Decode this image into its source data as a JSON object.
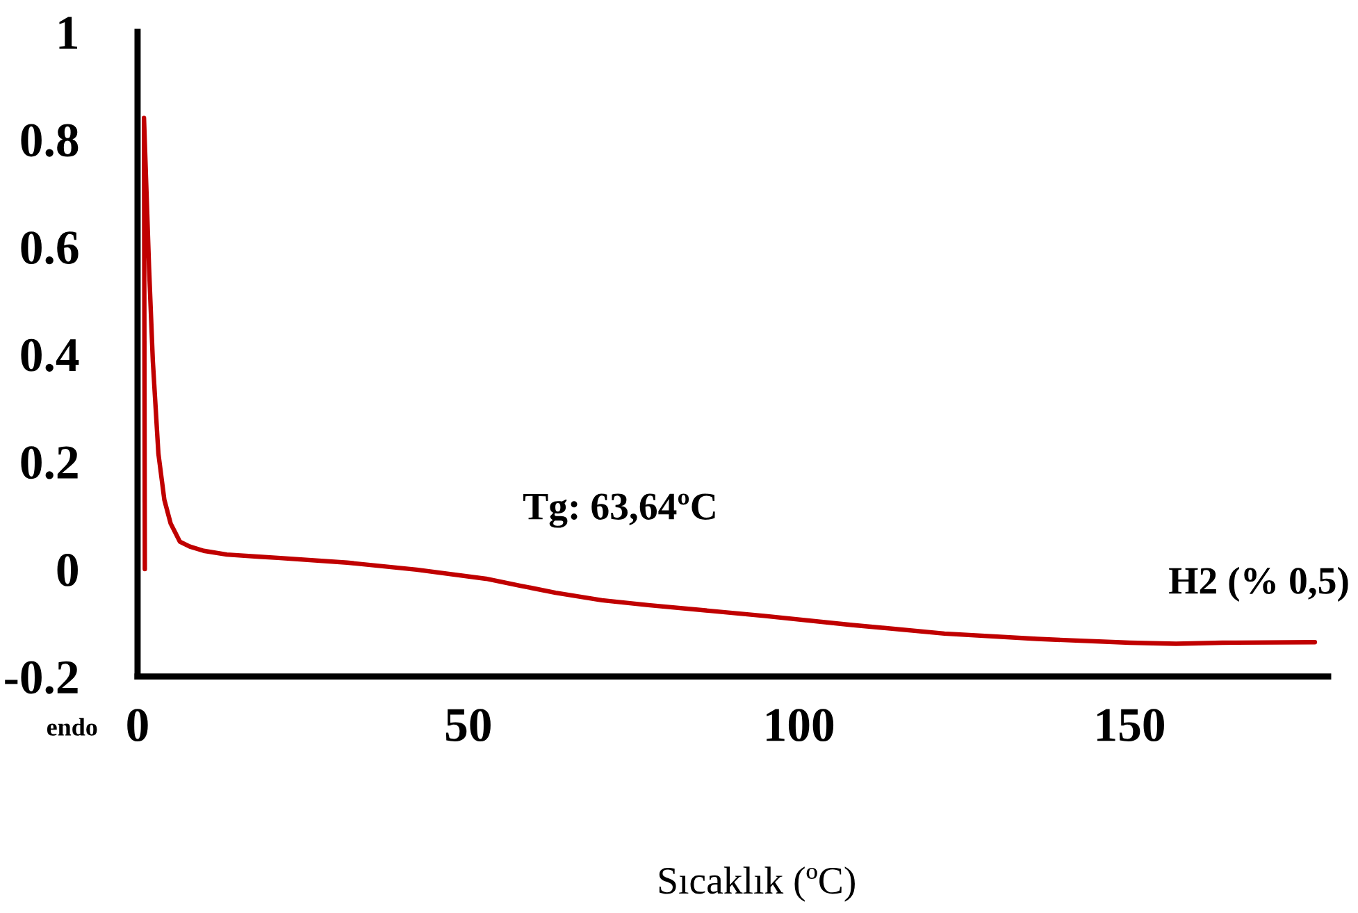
{
  "chart_data": {
    "type": "line",
    "xlabel": "Sıcaklık (ºC)",
    "xlim": [
      0,
      180
    ],
    "xticks": [
      0,
      50,
      100,
      150
    ],
    "ylim": [
      -0.2,
      1
    ],
    "yticks": [
      -0.2,
      0,
      0.2,
      0.4,
      0.6,
      0.8,
      1
    ],
    "line_style": "solid",
    "annotations": [
      {
        "text": "Tg: 63,64ºC",
        "x": 63.64,
        "y": -0.045
      },
      "endo"
    ],
    "series": [
      {
        "name": "H2 (% 0,5)",
        "color": "#c00000",
        "x": [
          1.1,
          0.97,
          1.74,
          2.31,
          3.15,
          4.05,
          5.0,
          6.4,
          7.9,
          10.0,
          13.5,
          18.4,
          21.2,
          31.7,
          42.2,
          52.7,
          57.9,
          63.2,
          70.2,
          77.2,
          94.7,
          108,
          122,
          136,
          150,
          157,
          164,
          178
        ],
        "values": [
          0.0,
          0.84,
          0.56,
          0.387,
          0.215,
          0.129,
          0.085,
          0.051,
          0.042,
          0.034,
          0.027,
          0.023,
          0.021,
          0.012,
          -0.001,
          -0.018,
          -0.031,
          -0.044,
          -0.058,
          -0.067,
          -0.087,
          -0.104,
          -0.12,
          -0.13,
          -0.137,
          -0.139,
          -0.137,
          -0.136
        ]
      }
    ]
  }
}
